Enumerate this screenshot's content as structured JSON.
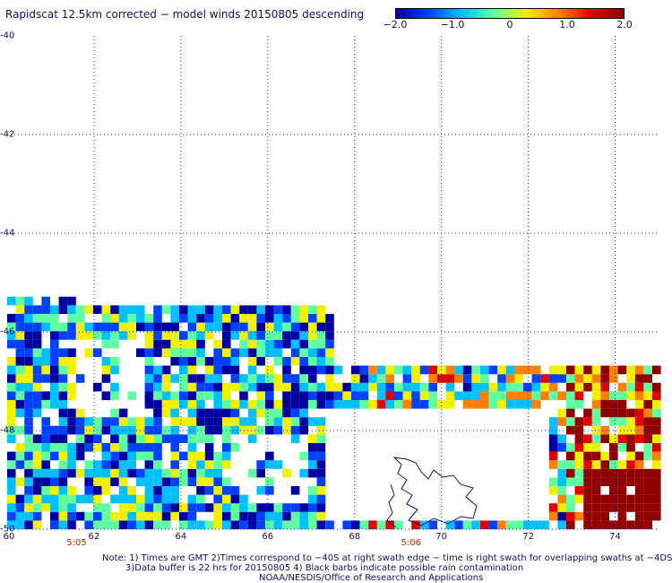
{
  "title": "Rapidscat 12.5km corrected − model winds 20150805 descending",
  "colorbar": {
    "ticks": [
      "−2.0",
      "−1.0",
      "0",
      "1.0",
      "2.0"
    ],
    "tick_values": [
      -2.0,
      -1.0,
      0,
      1.0,
      2.0
    ],
    "range": [
      -2.0,
      2.0
    ],
    "colors": [
      "#0000a0",
      "#0040ff",
      "#00c0ff",
      "#60ffa0",
      "#f0f000",
      "#ff8000",
      "#e00000",
      "#900000"
    ]
  },
  "map": {
    "lat_range": [
      -50,
      -40
    ],
    "lon_range": [
      60,
      75
    ],
    "lat_labels": [
      "-40",
      "-42",
      "-44",
      "-46",
      "-48",
      "-50"
    ],
    "lat_values": [
      -40,
      -42,
      -44,
      -46,
      -48,
      -50
    ],
    "lon_labels": [
      "60",
      "62",
      "64",
      "66",
      "68",
      "70",
      "72",
      "74"
    ],
    "lon_values": [
      60,
      62,
      64,
      66,
      68,
      70,
      72,
      74
    ],
    "time_labels": [
      {
        "text": "5:05",
        "lon": 61.6
      },
      {
        "text": "5:06",
        "lon": 69.3
      }
    ],
    "coastline": "Kerguelen Islands outline",
    "grid": "dotted blue",
    "swath": "wind difference cells (corrected minus model)"
  },
  "notes": {
    "line1": "Note: 1) Times are GMT 2)Times correspond to −40S at right swath edge − time is right swath for overlapping swaths at −4DS",
    "line2": "3)Data buffer is 22 hrs for 20150805 4) Black barbs indicate possible rain contamination",
    "line3": "NOAA/NESDIS/Office of Research and Applications"
  }
}
